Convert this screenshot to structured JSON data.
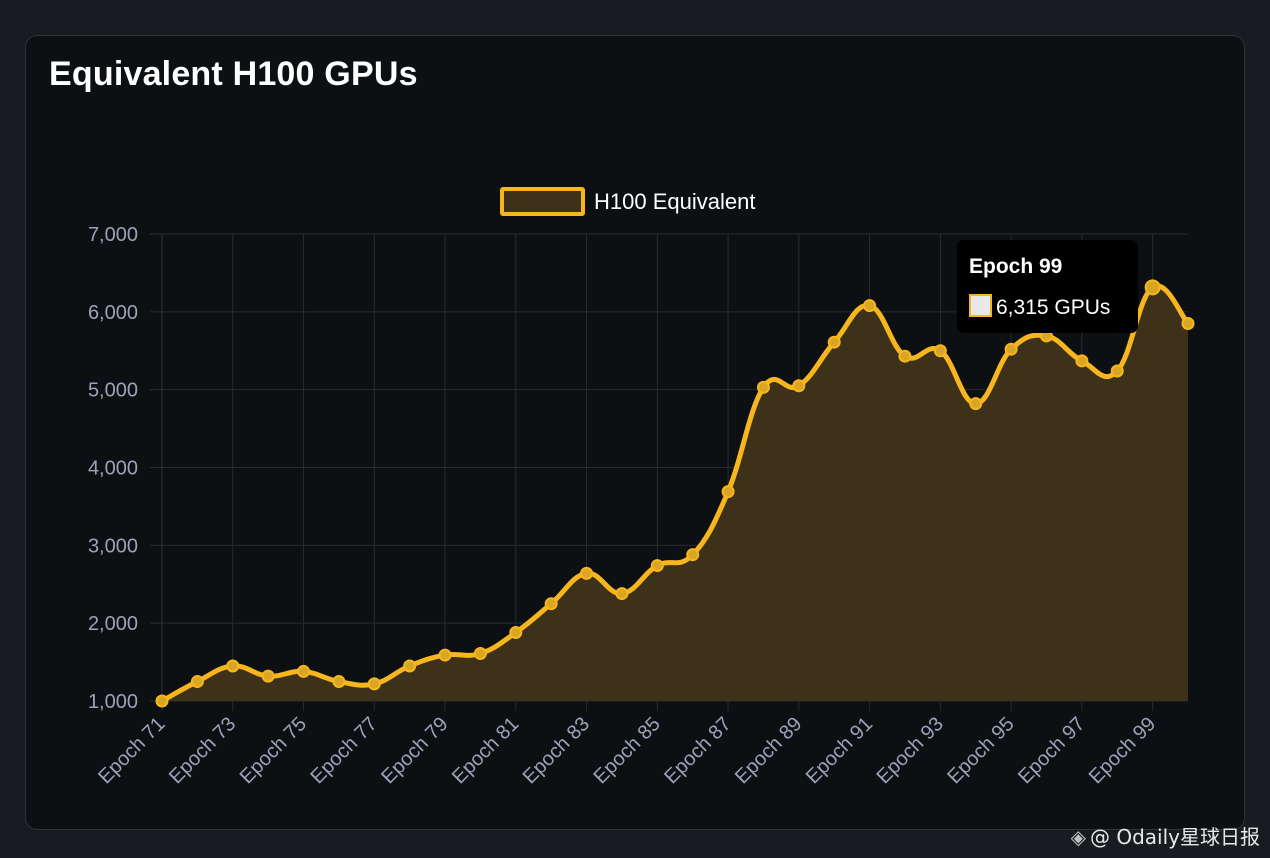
{
  "chart_data": {
    "type": "area",
    "title": "Equivalent H100 GPUs",
    "legend": {
      "label": "H100 Equivalent",
      "position": "top-center"
    },
    "series": [
      {
        "name": "H100 Equivalent",
        "x": [
          "Epoch 71",
          "Epoch 72",
          "Epoch 73",
          "Epoch 74",
          "Epoch 75",
          "Epoch 76",
          "Epoch 77",
          "Epoch 78",
          "Epoch 79",
          "Epoch 80",
          "Epoch 81",
          "Epoch 82",
          "Epoch 83",
          "Epoch 84",
          "Epoch 85",
          "Epoch 86",
          "Epoch 87",
          "Epoch 88",
          "Epoch 89",
          "Epoch 90",
          "Epoch 91",
          "Epoch 92",
          "Epoch 93",
          "Epoch 94",
          "Epoch 95",
          "Epoch 96",
          "Epoch 97",
          "Epoch 98",
          "Epoch 99",
          "Epoch 100"
        ],
        "values": [
          1000,
          1250,
          1450,
          1320,
          1380,
          1250,
          1220,
          1450,
          1590,
          1610,
          1880,
          2250,
          2640,
          2380,
          2740,
          2880,
          3690,
          5030,
          5050,
          5610,
          6080,
          5430,
          5500,
          4820,
          5520,
          5690,
          5370,
          5240,
          6315,
          5850
        ]
      }
    ],
    "xticks": [
      "Epoch 71",
      "Epoch 73",
      "Epoch 75",
      "Epoch 77",
      "Epoch 79",
      "Epoch 81",
      "Epoch 83",
      "Epoch 85",
      "Epoch 87",
      "Epoch 89",
      "Epoch 91",
      "Epoch 93",
      "Epoch 95",
      "Epoch 97",
      "Epoch 99"
    ],
    "yticks": [
      "1,000",
      "2,000",
      "3,000",
      "4,000",
      "5,000",
      "6,000",
      "7,000"
    ],
    "ylim": [
      1000,
      7000
    ],
    "grid": true,
    "tooltip": {
      "title": "Epoch 99",
      "value": "6,315 GPUs"
    },
    "colors": {
      "line": "#f7b51e",
      "fill": "#3e3119",
      "grid": "#272c31",
      "tick_text": "#9aa3b8"
    }
  },
  "watermark": {
    "icon": "diamond-logo-icon",
    "text": "@ Odaily星球日报"
  }
}
